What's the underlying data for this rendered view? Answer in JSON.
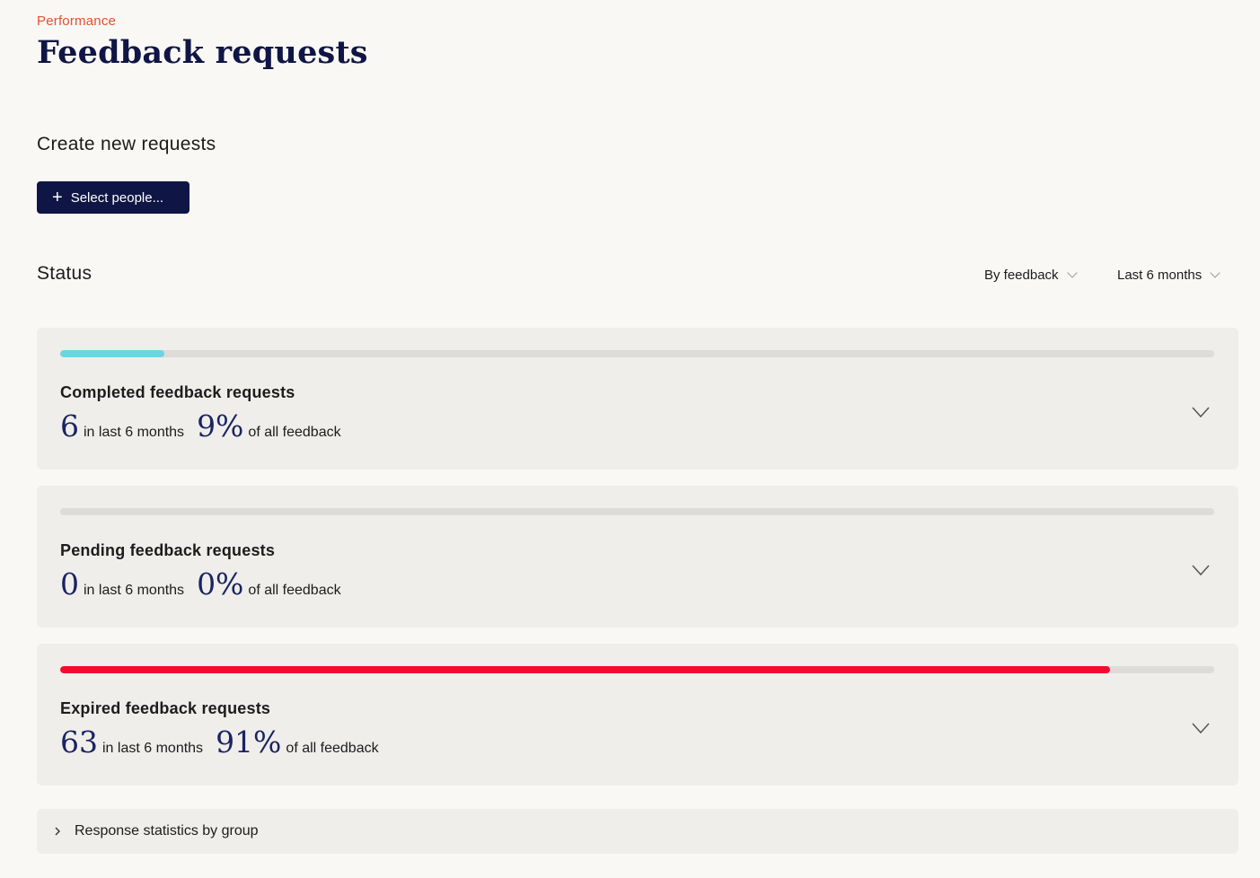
{
  "breadcrumb": "Performance",
  "page_title": "Feedback requests",
  "create_section": {
    "heading": "Create new requests",
    "button_label": "Select people..."
  },
  "status_section": {
    "heading": "Status",
    "group_filter": "By feedback",
    "period_filter": "Last 6 months"
  },
  "cards": [
    {
      "title": "Completed feedback requests",
      "count": "6",
      "count_label": "in last 6 months",
      "percent": "9%",
      "percent_label": "of all feedback",
      "progress": 0.09,
      "color": "#6dd4e0"
    },
    {
      "title": "Pending feedback requests",
      "count": "0",
      "count_label": "in last 6 months",
      "percent": "0%",
      "percent_label": "of all feedback",
      "progress": 0,
      "color": "#6dd4e0"
    },
    {
      "title": "Expired feedback requests",
      "count": "63",
      "count_label": "in last 6 months",
      "percent": "91%",
      "percent_label": "of all feedback",
      "progress": 0.91,
      "color": "#f5092d"
    }
  ],
  "group_stats": {
    "label": "Response statistics by group"
  },
  "colors": {
    "accent": "#e8502a",
    "primary": "#0f1645",
    "completed": "#6dd4e0",
    "expired": "#f5092d"
  }
}
